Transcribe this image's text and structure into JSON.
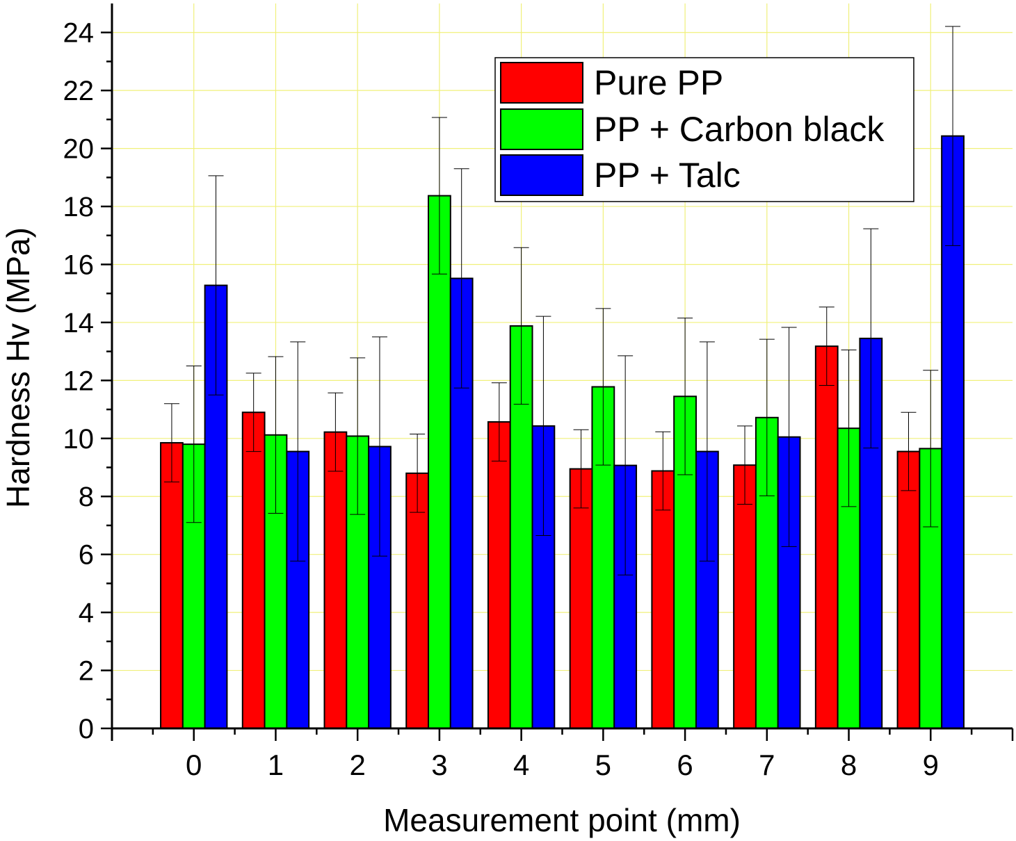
{
  "chart_data": {
    "type": "bar",
    "title": "",
    "xlabel": "Measurement point (mm)",
    "ylabel": "Hardness Hv (MPa)",
    "categories": [
      "0",
      "1",
      "2",
      "3",
      "4",
      "5",
      "6",
      "7",
      "8",
      "9"
    ],
    "xlim": [
      -1,
      10
    ],
    "ylim": [
      0,
      25
    ],
    "yticks": [
      "0",
      "2",
      "4",
      "6",
      "8",
      "10",
      "12",
      "14",
      "16",
      "18",
      "20",
      "22",
      "24"
    ],
    "grid": true,
    "legend_position": "top-right",
    "series": [
      {
        "name": "Pure PP",
        "color": "#ff0000",
        "values": [
          9.85,
          10.9,
          10.22,
          8.8,
          10.57,
          8.95,
          8.88,
          9.08,
          13.18,
          9.55
        ],
        "errors": [
          1.35,
          1.35,
          1.35,
          1.35,
          1.35,
          1.35,
          1.35,
          1.35,
          1.35,
          1.35
        ]
      },
      {
        "name": "PP + Carbon black",
        "color": "#00ff00",
        "values": [
          9.8,
          10.12,
          10.08,
          18.37,
          13.88,
          11.78,
          11.45,
          10.72,
          10.35,
          9.65
        ],
        "errors": [
          2.7,
          2.7,
          2.7,
          2.7,
          2.7,
          2.7,
          2.7,
          2.7,
          2.7,
          2.7
        ]
      },
      {
        "name": "PP + Talc",
        "color": "#0000ff",
        "values": [
          15.28,
          9.55,
          9.72,
          15.52,
          10.43,
          9.07,
          9.55,
          10.05,
          13.45,
          20.43
        ],
        "errors": [
          3.78,
          3.78,
          3.78,
          3.78,
          3.78,
          3.78,
          3.78,
          3.78,
          3.78,
          3.78
        ]
      }
    ]
  }
}
